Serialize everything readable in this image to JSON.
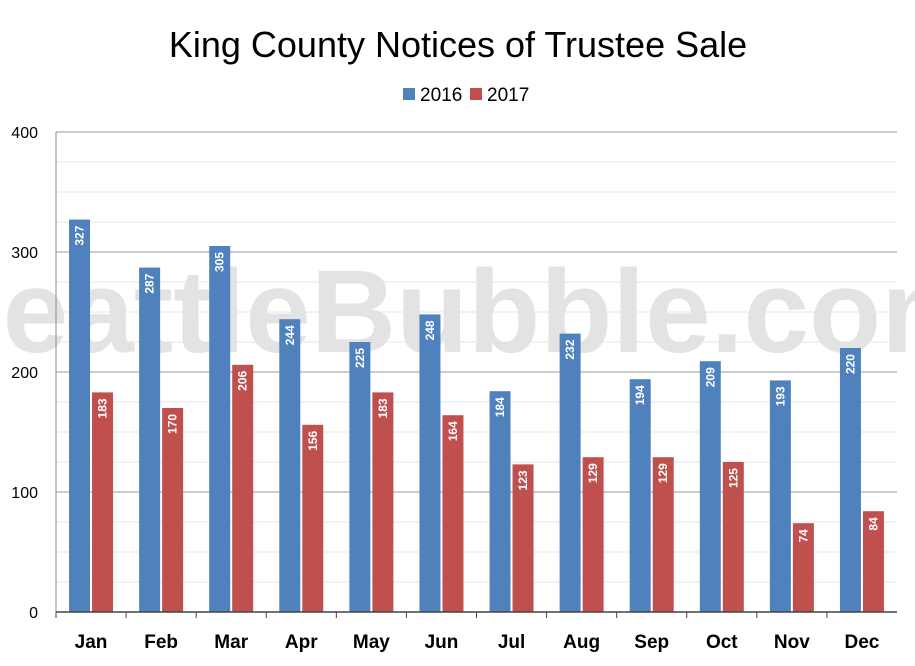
{
  "chart_data": {
    "type": "bar",
    "title": "King County Notices of Trustee Sale",
    "categories": [
      "Jan",
      "Feb",
      "Mar",
      "Apr",
      "May",
      "Jun",
      "Jul",
      "Aug",
      "Sep",
      "Oct",
      "Nov",
      "Dec"
    ],
    "series": [
      {
        "name": "2016",
        "color": "#4f81bd",
        "values": [
          327,
          287,
          305,
          244,
          225,
          248,
          184,
          232,
          194,
          209,
          193,
          220
        ]
      },
      {
        "name": "2017",
        "color": "#c0504d",
        "values": [
          183,
          170,
          206,
          156,
          183,
          164,
          123,
          129,
          129,
          125,
          74,
          84
        ]
      }
    ],
    "ylim": [
      0,
      400
    ],
    "yticks": [
      0,
      100,
      200,
      300,
      400
    ],
    "grid": true,
    "legend": "top-center",
    "watermark": "SeattleBubble.com"
  }
}
